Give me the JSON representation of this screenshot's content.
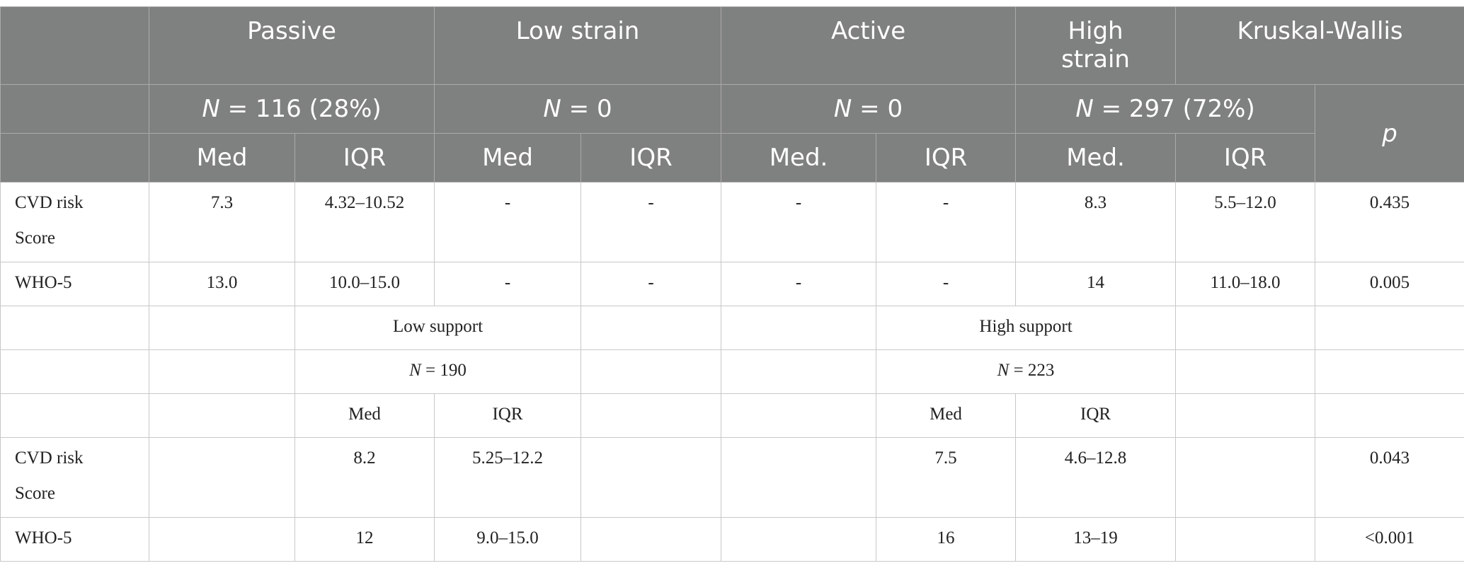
{
  "header": {
    "row1": {
      "passive": "Passive",
      "low_strain": "Low strain",
      "active": "Active",
      "high_strain_1": "High",
      "high_strain_2": "strain",
      "kruskal": "Kruskal-Wallis"
    },
    "row2": {
      "passive_n_prefix": "N",
      "passive_n_rest": " = 116 (28%)",
      "low_strain_n_prefix": "N",
      "low_strain_n_rest": " = 0",
      "active_n_prefix": "N",
      "active_n_rest": " = 0",
      "high_strain_n_prefix": "N",
      "high_strain_n_rest": " = 297 (72%)",
      "p": "p"
    },
    "row3": [
      "Med",
      "IQR",
      "Med",
      "IQR",
      "Med.",
      "IQR",
      "Med.",
      "IQR"
    ]
  },
  "rows": {
    "cvd1": {
      "label_1": "CVD risk",
      "label_2": "Score",
      "cells": [
        "7.3",
        "4.32–10.52",
        "-",
        "-",
        "-",
        "-",
        "8.3",
        "5.5–12.0",
        "0.435"
      ]
    },
    "who1": {
      "label": "WHO-5",
      "cells": [
        "13.0",
        "10.0–15.0",
        "-",
        "-",
        "-",
        "-",
        "14",
        "11.0–18.0",
        "0.005"
      ]
    },
    "support_head": {
      "low": "Low support",
      "high": "High support"
    },
    "support_n": {
      "low_prefix": "N",
      "low_rest": " = 190",
      "high_prefix": "N",
      "high_rest": " = 223"
    },
    "support_cols": [
      "Med",
      "IQR",
      "Med",
      "IQR"
    ],
    "cvd2": {
      "label_1": "CVD risk",
      "label_2": "Score",
      "cells": [
        "8.2",
        "5.25–12.2",
        "7.5",
        "4.6–12.8",
        "0.043"
      ]
    },
    "who2": {
      "label": "WHO-5",
      "cells": [
        "12",
        "9.0–15.0",
        "16",
        "13–19",
        "<0.001"
      ]
    }
  },
  "colors": {
    "header_bg": "#7f8180",
    "header_text": "#ffffff",
    "grid": "#c8c8c8"
  }
}
